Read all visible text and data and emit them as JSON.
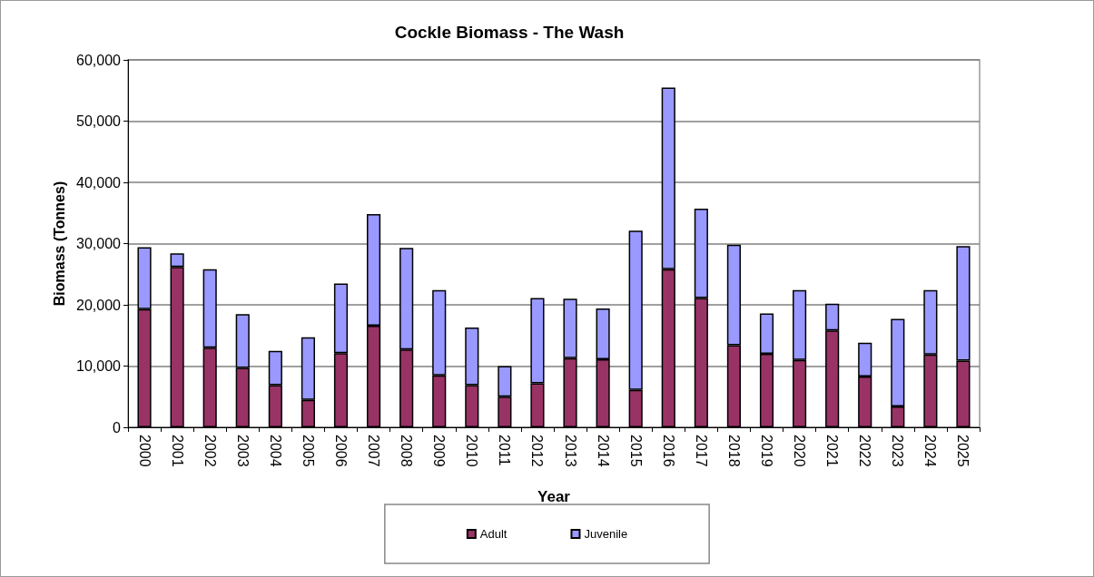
{
  "chart_data": {
    "type": "bar",
    "title": "Cockle Biomass - The Wash",
    "xlabel": "Year",
    "ylabel": "Biomass (Tonnes)",
    "categories": [
      "2000",
      "2001",
      "2002",
      "2003",
      "2004",
      "2005",
      "2006",
      "2007",
      "2008",
      "2009",
      "2010",
      "2011",
      "2012",
      "2013",
      "2014",
      "2015",
      "2016",
      "2017",
      "2018",
      "2019",
      "2020",
      "2021",
      "2022",
      "2023",
      "2024",
      "2025"
    ],
    "series": [
      {
        "name": "Adult",
        "color": "#993366",
        "values": [
          19300,
          26200,
          13000,
          9700,
          6900,
          4500,
          12100,
          16600,
          12700,
          8500,
          6900,
          5000,
          7200,
          11300,
          11100,
          6100,
          25800,
          21100,
          13400,
          12000,
          11000,
          15800,
          8300,
          3400,
          11900,
          10900
        ]
      },
      {
        "name": "Juvenile",
        "color": "#9999ff",
        "values": [
          10100,
          2200,
          12800,
          8800,
          5600,
          10200,
          11400,
          18200,
          16600,
          13900,
          9400,
          5000,
          13900,
          9700,
          8300,
          26000,
          29700,
          14600,
          16400,
          6600,
          11400,
          4400,
          5500,
          14300,
          10500,
          18700
        ]
      }
    ],
    "stacked": true,
    "ylim": [
      0,
      60000
    ],
    "yticks": [
      {
        "value": 0,
        "label": "0"
      },
      {
        "value": 10000,
        "label": "10,000"
      },
      {
        "value": 20000,
        "label": "20,000"
      },
      {
        "value": 30000,
        "label": "30,000"
      },
      {
        "value": 40000,
        "label": "40,000"
      },
      {
        "value": 50000,
        "label": "50,000"
      },
      {
        "value": 60000,
        "label": "60,000"
      }
    ],
    "grid": "y",
    "legend": "bottom"
  }
}
